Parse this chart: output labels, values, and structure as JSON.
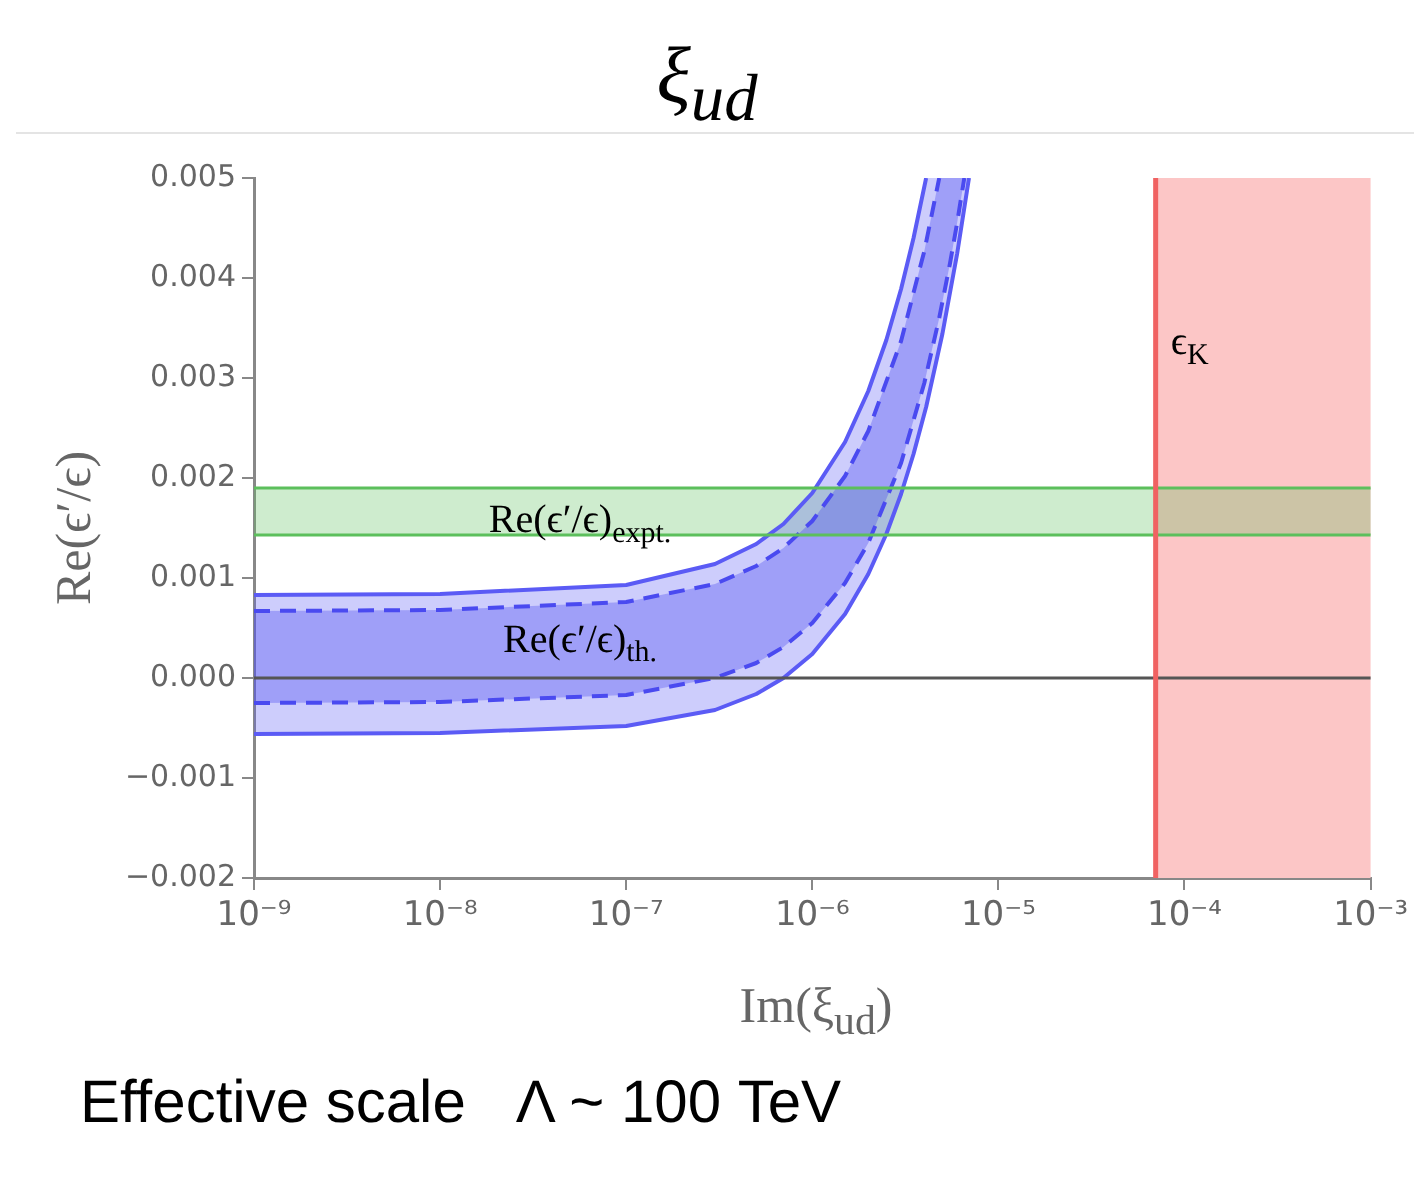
{
  "chart_data": {
    "type": "line",
    "title": "ξ$_{ud}$",
    "xlabel": "Im(ξ$_{ud}$)",
    "ylabel": "Re(ϵ′/ϵ)",
    "log": "x",
    "grid": false,
    "legend": false,
    "marker": "none",
    "xlim": [
      1e-09,
      0.001
    ],
    "xticks": [
      {
        "value": 1e-09,
        "label": "10⁻⁹"
      },
      {
        "value": 1e-08,
        "label": "10⁻⁸"
      },
      {
        "value": 1e-07,
        "label": "10⁻⁷"
      },
      {
        "value": 1e-06,
        "label": "10⁻⁶"
      },
      {
        "value": 1e-05,
        "label": "10⁻⁵"
      },
      {
        "value": 0.0001,
        "label": "10⁻⁴"
      },
      {
        "value": 0.001,
        "label": "10⁻³"
      }
    ],
    "ylim": [
      -0.002,
      0.005
    ],
    "yticks": [
      {
        "value": -0.002,
        "label": "−0.002"
      },
      {
        "value": -0.001,
        "label": "−0.001"
      },
      {
        "value": 0,
        "label": "0.000"
      },
      0.001,
      0.002,
      0.003,
      0.004,
      0.005
    ],
    "series": [
      {
        "color": "#5b5bf5",
        "line_style": "solid",
        "x": [
          1e-09,
          1e-08,
          1e-07,
          3e-07,
          5e-07,
          7e-07,
          1e-06,
          1.5e-06,
          2e-06,
          2.5e-06,
          3e-06,
          3.5e-06,
          4.09e-06
        ],
        "values": [
          0.00083,
          0.00084,
          0.00093,
          0.00114,
          0.00134,
          0.00154,
          0.00185,
          0.00236,
          0.00287,
          0.00338,
          0.00389,
          0.0044,
          0.005
        ]
      },
      {
        "color": "#5b5bf5",
        "line_style": "solid",
        "x": [
          1e-09,
          1e-08,
          1e-07,
          3e-07,
          5e-07,
          7e-07,
          1e-06,
          1.5e-06,
          2e-06,
          2.5e-06,
          3e-06,
          3.5e-06,
          4.09e-06,
          5e-06,
          6e-06,
          6.95e-06
        ],
        "values": [
          -0.00056,
          -0.00055,
          -0.00048,
          -0.00032,
          -0.00016,
          0.0,
          0.00024,
          0.00064,
          0.00104,
          0.00144,
          0.00184,
          0.00224,
          0.00271,
          0.00344,
          0.00424,
          0.005
        ],
        "lower": [
          -0.00056,
          -0.00055,
          -0.00048,
          -0.00032,
          -0.00016,
          0.0,
          0.00024,
          0.00064,
          0.00104,
          0.00144,
          0.00184,
          0.00224,
          0.00271,
          0.00344,
          0.00424,
          0.005
        ],
        "upper": [
          0.00083,
          0.00084,
          0.00093,
          0.00114,
          0.00134,
          0.00154,
          0.00185,
          0.00236,
          0.00287,
          0.00338,
          0.00389,
          0.0044,
          0.005,
          0.005,
          0.005,
          0.005
        ]
      },
      {
        "color": "#4a4af0",
        "line_style": "dashed",
        "x": [
          1e-09,
          1e-08,
          1e-07,
          3e-07,
          5e-07,
          7e-07,
          1e-06,
          1.5e-06,
          2e-06,
          3e-06,
          4e-06,
          4.81e-06
        ],
        "values": [
          0.00067,
          0.00068,
          0.00076,
          0.00094,
          0.00112,
          0.0013,
          0.00157,
          0.00202,
          0.00247,
          0.00337,
          0.00427,
          0.005
        ]
      },
      {
        "color": "#4a4af0",
        "line_style": "dashed",
        "x": [
          1e-09,
          1e-08,
          1e-07,
          3e-07,
          5e-07,
          7e-07,
          1e-06,
          1.5e-06,
          2e-06,
          3e-06,
          4e-06,
          4.81e-06,
          5.5e-06,
          6e-06,
          6.56e-06
        ],
        "values": [
          -0.00025,
          -0.00024,
          -0.00017,
          0.0,
          0.00015,
          0.00031,
          0.00055,
          0.00095,
          0.00135,
          0.00215,
          0.00295,
          0.0036,
          0.00415,
          0.00455,
          0.005
        ],
        "lower": [
          -0.00025,
          -0.00024,
          -0.00017,
          0.0,
          0.00015,
          0.00031,
          0.00055,
          0.00095,
          0.00135,
          0.00215,
          0.00295,
          0.0036,
          0.00415,
          0.00455,
          0.005
        ],
        "upper": [
          0.00067,
          0.00068,
          0.00076,
          0.00094,
          0.00112,
          0.0013,
          0.00157,
          0.00202,
          0.00247,
          0.00337,
          0.00427,
          0.005,
          0.005,
          0.005,
          0.005
        ]
      }
    ],
    "bands": [
      {
        "axis": "x",
        "from": 7e-05,
        "to": 0.001,
        "color": "#fcc6c6"
      },
      {
        "axis": "y",
        "from": 0.00143,
        "to": 0.0019,
        "color": "#5cbf5c"
      }
    ],
    "ref_lines": [
      {
        "axis": "y",
        "value": 0,
        "color": "#555555"
      },
      {
        "axis": "y",
        "value": 0.00143,
        "color": "#5cbf5c"
      },
      {
        "axis": "y",
        "value": 0.0019,
        "color": "#5cbf5c"
      },
      {
        "axis": "x",
        "value": 7e-05,
        "color": "#f06262"
      }
    ],
    "annotations": [
      "Re(ϵ′/ϵ)$_{expt.}$",
      "Re(ϵ′/ϵ)$_{th.}$",
      "ϵ$_{K}$",
      "Effective scale   Λ ~ 100 TeV"
    ]
  }
}
